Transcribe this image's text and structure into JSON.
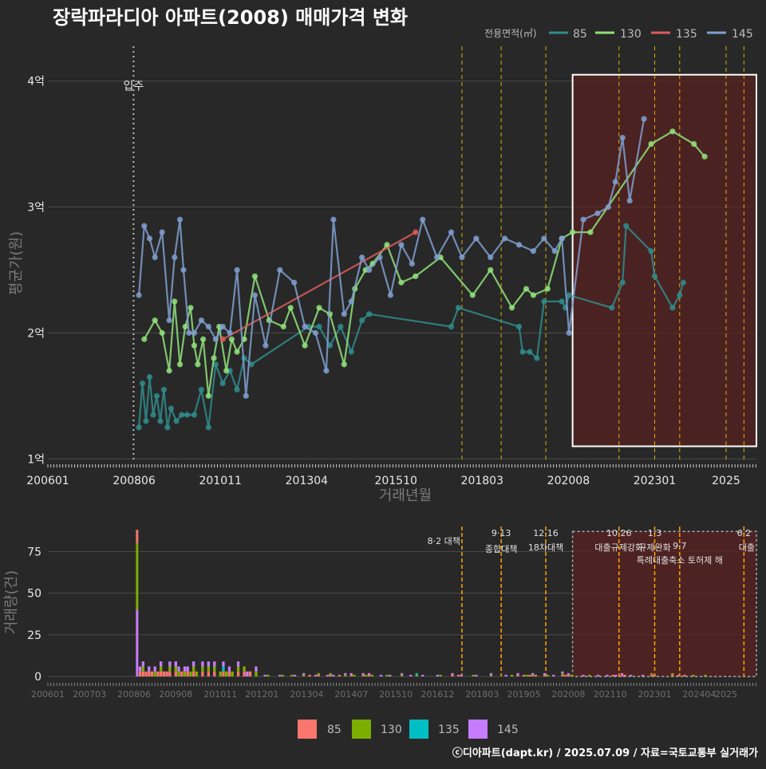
{
  "title": "장락파라디아 아파트(2008) 매매가격 변화",
  "credit": "ⓒ디아파트(dapt.kr) / 2025.07.09 / 자료=국토교통부 실거래가",
  "colors": {
    "background": "#282828",
    "grid": "#4a4a4a",
    "s85_line": "#2f8c8c",
    "s130_line": "#8fe27a",
    "s135_line": "#e05a5a",
    "s145_line": "#7f9fcf",
    "bar85": "#f8766d",
    "bar130": "#7cae00",
    "bar135": "#00bfc4",
    "bar145": "#c77cff",
    "policy_line": "#ffd400",
    "highlight_fill": "#5a2020",
    "highlight_stroke": "#ffffff"
  },
  "chart_data": [
    {
      "type": "line",
      "title": "장락파라디아 아파트(2008) 매매가격 변화",
      "xlabel": "거래년월",
      "ylabel": "평균가(원)",
      "x_ticks": [
        "200601",
        "200806",
        "201011",
        "201304",
        "201510",
        "201803",
        "202008",
        "202301",
        "2025"
      ],
      "y_ticks": [
        "1억",
        "2억",
        "3억",
        "4억"
      ],
      "ylim": [
        1.0,
        4.2
      ],
      "grid": true,
      "legend": {
        "title": "전용면적(㎡)",
        "position": "top-right",
        "entries": [
          "85",
          "130",
          "135",
          "145"
        ]
      },
      "annotation_label": "입주",
      "series": [
        {
          "name": "85",
          "points": [
            [
              2008.55,
              1.25
            ],
            [
              2008.65,
              1.6
            ],
            [
              2008.75,
              1.3
            ],
            [
              2008.85,
              1.65
            ],
            [
              2008.95,
              1.35
            ],
            [
              2009.05,
              1.5
            ],
            [
              2009.15,
              1.3
            ],
            [
              2009.25,
              1.55
            ],
            [
              2009.35,
              1.25
            ],
            [
              2009.45,
              1.4
            ],
            [
              2009.6,
              1.3
            ],
            [
              2009.75,
              1.35
            ],
            [
              2009.9,
              1.35
            ],
            [
              2010.1,
              1.35
            ],
            [
              2010.3,
              1.55
            ],
            [
              2010.5,
              1.25
            ],
            [
              2010.7,
              1.75
            ],
            [
              2010.9,
              1.6
            ],
            [
              2011.1,
              1.7
            ],
            [
              2011.3,
              1.55
            ],
            [
              2011.5,
              1.8
            ],
            [
              2011.7,
              1.75
            ],
            [
              2013.3,
              2.05
            ],
            [
              2013.6,
              2.05
            ],
            [
              2013.9,
              1.9
            ],
            [
              2014.2,
              2.05
            ],
            [
              2014.5,
              1.85
            ],
            [
              2014.8,
              2.1
            ],
            [
              2015.0,
              2.15
            ],
            [
              2017.3,
              2.05
            ],
            [
              2017.5,
              2.2
            ],
            [
              2019.2,
              2.05
            ],
            [
              2019.3,
              1.85
            ],
            [
              2019.5,
              1.85
            ],
            [
              2019.7,
              1.8
            ],
            [
              2019.9,
              2.25
            ],
            [
              2020.4,
              2.25
            ],
            [
              2020.5,
              2.2
            ],
            [
              2020.6,
              2.3
            ],
            [
              2021.8,
              2.2
            ],
            [
              2022.1,
              2.4
            ],
            [
              2022.2,
              2.85
            ],
            [
              2022.9,
              2.65
            ],
            [
              2023.0,
              2.45
            ],
            [
              2023.5,
              2.2
            ],
            [
              2023.7,
              2.3
            ],
            [
              2023.8,
              2.4
            ]
          ]
        },
        {
          "name": "130",
          "points": [
            [
              2008.7,
              1.95
            ],
            [
              2009.0,
              2.1
            ],
            [
              2009.2,
              2.0
            ],
            [
              2009.4,
              1.7
            ],
            [
              2009.55,
              2.25
            ],
            [
              2009.7,
              1.75
            ],
            [
              2009.85,
              2.05
            ],
            [
              2010.0,
              2.2
            ],
            [
              2010.1,
              1.9
            ],
            [
              2010.2,
              1.75
            ],
            [
              2010.35,
              1.95
            ],
            [
              2010.5,
              1.5
            ],
            [
              2010.65,
              1.8
            ],
            [
              2010.8,
              2.05
            ],
            [
              2011.0,
              1.7
            ],
            [
              2011.15,
              1.95
            ],
            [
              2011.3,
              1.85
            ],
            [
              2011.5,
              1.95
            ],
            [
              2011.8,
              2.45
            ],
            [
              2012.2,
              2.1
            ],
            [
              2012.6,
              2.05
            ],
            [
              2012.8,
              2.2
            ],
            [
              2013.2,
              1.9
            ],
            [
              2013.6,
              2.2
            ],
            [
              2013.9,
              2.15
            ],
            [
              2014.3,
              1.75
            ],
            [
              2014.6,
              2.35
            ],
            [
              2014.9,
              2.5
            ],
            [
              2015.1,
              2.55
            ],
            [
              2015.5,
              2.7
            ],
            [
              2015.9,
              2.4
            ],
            [
              2016.3,
              2.45
            ],
            [
              2017.0,
              2.6
            ],
            [
              2017.9,
              2.3
            ],
            [
              2018.4,
              2.5
            ],
            [
              2019.0,
              2.2
            ],
            [
              2019.4,
              2.35
            ],
            [
              2019.6,
              2.3
            ],
            [
              2020.0,
              2.35
            ],
            [
              2020.4,
              2.75
            ],
            [
              2020.7,
              2.8
            ],
            [
              2021.2,
              2.8
            ],
            [
              2022.9,
              3.5
            ],
            [
              2023.5,
              3.6
            ],
            [
              2024.1,
              3.5
            ],
            [
              2024.4,
              3.4
            ]
          ]
        },
        {
          "name": "135",
          "points": [
            [
              2010.9,
              1.95
            ],
            [
              2016.3,
              2.8
            ]
          ]
        },
        {
          "name": "145",
          "points": [
            [
              2008.55,
              2.3
            ],
            [
              2008.7,
              2.85
            ],
            [
              2008.85,
              2.75
            ],
            [
              2009.0,
              2.6
            ],
            [
              2009.2,
              2.8
            ],
            [
              2009.4,
              2.1
            ],
            [
              2009.55,
              2.6
            ],
            [
              2009.7,
              2.9
            ],
            [
              2009.8,
              2.5
            ],
            [
              2009.95,
              2.0
            ],
            [
              2010.1,
              2.0
            ],
            [
              2010.3,
              2.1
            ],
            [
              2010.5,
              2.05
            ],
            [
              2010.7,
              1.95
            ],
            [
              2010.9,
              2.05
            ],
            [
              2011.1,
              2.0
            ],
            [
              2011.3,
              2.5
            ],
            [
              2011.55,
              1.5
            ],
            [
              2011.8,
              2.3
            ],
            [
              2012.1,
              1.9
            ],
            [
              2012.5,
              2.5
            ],
            [
              2012.9,
              2.4
            ],
            [
              2013.2,
              2.05
            ],
            [
              2013.5,
              2.0
            ],
            [
              2013.8,
              1.7
            ],
            [
              2014.0,
              2.9
            ],
            [
              2014.3,
              2.15
            ],
            [
              2014.5,
              2.25
            ],
            [
              2014.8,
              2.6
            ],
            [
              2015.0,
              2.5
            ],
            [
              2015.3,
              2.6
            ],
            [
              2015.6,
              2.3
            ],
            [
              2015.9,
              2.7
            ],
            [
              2016.2,
              2.55
            ],
            [
              2016.5,
              2.9
            ],
            [
              2016.9,
              2.6
            ],
            [
              2017.3,
              2.8
            ],
            [
              2017.6,
              2.6
            ],
            [
              2018.0,
              2.75
            ],
            [
              2018.4,
              2.6
            ],
            [
              2018.8,
              2.75
            ],
            [
              2019.2,
              2.7
            ],
            [
              2019.6,
              2.65
            ],
            [
              2019.9,
              2.75
            ],
            [
              2020.2,
              2.65
            ],
            [
              2020.4,
              2.75
            ],
            [
              2020.6,
              2.0
            ],
            [
              2021.0,
              2.9
            ],
            [
              2021.4,
              2.95
            ],
            [
              2021.7,
              3.0
            ],
            [
              2021.9,
              3.2
            ],
            [
              2022.1,
              3.55
            ],
            [
              2022.3,
              3.05
            ],
            [
              2022.7,
              3.7
            ]
          ]
        }
      ],
      "policy_lines_x": [
        2017.6,
        2018.7,
        2019.95,
        2022.0,
        2023.0,
        2023.7,
        2025.0,
        2025.5
      ],
      "highlight": {
        "x_from": 2020.7,
        "x_to": 2025.85,
        "y_from": 1.1,
        "y_to": 4.05
      }
    },
    {
      "type": "bar",
      "ylabel": "거래량(건)",
      "x_ticks": [
        "200601",
        "200703",
        "200806",
        "200908",
        "201011",
        "201201",
        "201304",
        "201407",
        "201510",
        "201612",
        "201803",
        "201905",
        "202008",
        "202110",
        "202301",
        "202404",
        "2025"
      ],
      "y_ticks": [
        "0",
        "25",
        "50",
        "75"
      ],
      "ylim": [
        0,
        90
      ],
      "legend": {
        "position": "bottom",
        "entries": [
          "85",
          "130",
          "135",
          "145"
        ]
      },
      "spike": {
        "x": 2008.5,
        "s85": 8,
        "s130": 40,
        "s145": 40
      },
      "policies": [
        {
          "date": "8·2",
          "label": "대책"
        },
        {
          "date": "9·13",
          "label": "종합대책"
        },
        {
          "date": "12·16",
          "label": "18차대책"
        },
        {
          "date": "10·26",
          "label": "대출규제강화"
        },
        {
          "date": "1·3",
          "label": "규제완화"
        },
        {
          "date": "9·7",
          "label": "특례대출축소 토허제 해"
        },
        {
          "date": "6·2",
          "label": "대출"
        }
      ]
    }
  ]
}
